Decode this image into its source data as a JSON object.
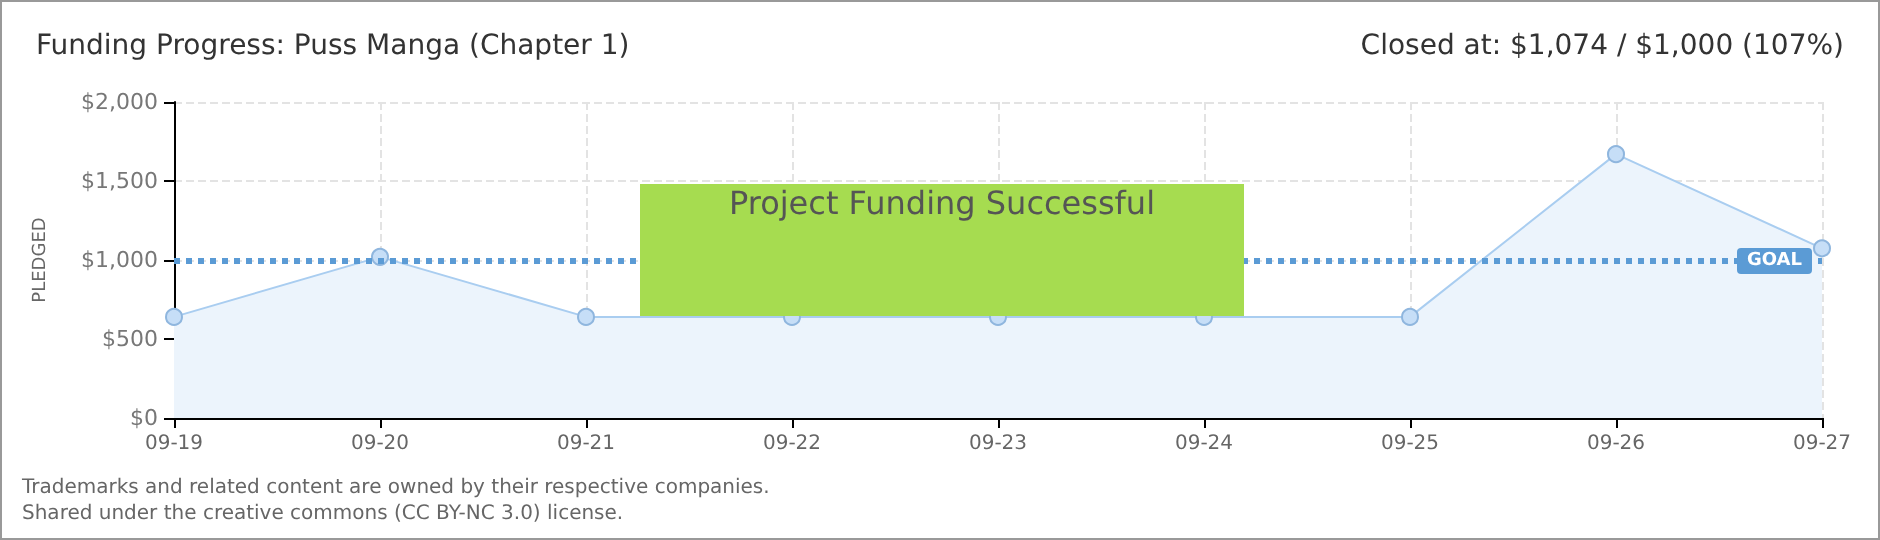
{
  "chart_data": {
    "type": "area",
    "title": "Funding Progress: Puss Manga (Chapter 1)",
    "subtitle": "Closed at: $1,074 / $1,000 (107%)",
    "ylabel": "PLEDGED",
    "categories": [
      "09-19",
      "09-20",
      "09-21",
      "09-22",
      "09-23",
      "09-24",
      "09-25",
      "09-26",
      "09-27"
    ],
    "series": [
      {
        "color": "#a9cdf0",
        "values": [
          640,
          1020,
          640,
          640,
          640,
          640,
          640,
          1670,
          1074
        ]
      }
    ],
    "ylim": [
      0,
      2000
    ],
    "yticks": [
      {
        "value": 0,
        "label": "$0"
      },
      {
        "value": 500,
        "label": "$500"
      },
      {
        "value": 1000,
        "label": "$1,000"
      },
      {
        "value": 1500,
        "label": "$1,500"
      },
      {
        "value": 2000,
        "label": "$2,000"
      }
    ],
    "ref_lines": [
      {
        "axis": "y",
        "value": 1000,
        "label": "GOAL",
        "color": "#5b9bd5",
        "line_style": "dotted"
      }
    ],
    "annotations": [
      "Project Funding Successful",
      "Trademarks and related content are owned by their respective companies.",
      "Shared under the creative commons (CC BY-NC 3.0) license."
    ],
    "grid": true,
    "marker": "circle"
  }
}
